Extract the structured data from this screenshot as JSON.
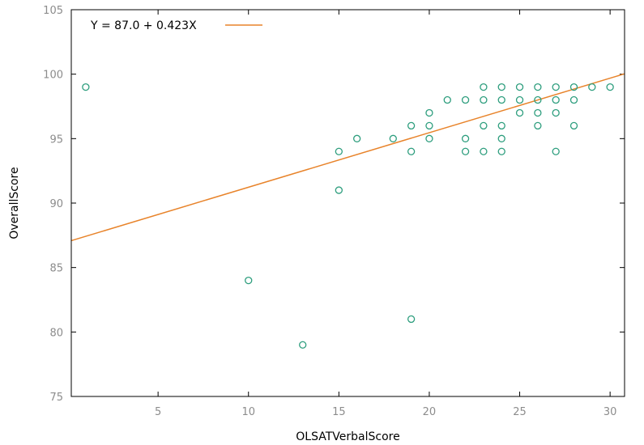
{
  "chart_data": {
    "type": "scatter",
    "xlabel": "OLSATVerbalScore",
    "ylabel": "OverallScore",
    "xlim": [
      0.2,
      30.8
    ],
    "ylim": [
      75,
      105
    ],
    "x_ticks": [
      5,
      10,
      15,
      20,
      25,
      30
    ],
    "y_ticks": [
      75,
      80,
      85,
      90,
      95,
      100,
      105
    ],
    "grid": false,
    "legend_position": "top-left",
    "points": [
      {
        "x": 1,
        "y": 99
      },
      {
        "x": 10,
        "y": 84
      },
      {
        "x": 13,
        "y": 79
      },
      {
        "x": 15,
        "y": 94
      },
      {
        "x": 15,
        "y": 91
      },
      {
        "x": 16,
        "y": 95
      },
      {
        "x": 18,
        "y": 95
      },
      {
        "x": 19,
        "y": 96
      },
      {
        "x": 19,
        "y": 94
      },
      {
        "x": 19,
        "y": 81
      },
      {
        "x": 20,
        "y": 97
      },
      {
        "x": 20,
        "y": 96
      },
      {
        "x": 20,
        "y": 95
      },
      {
        "x": 21,
        "y": 98
      },
      {
        "x": 22,
        "y": 98
      },
      {
        "x": 22,
        "y": 95
      },
      {
        "x": 22,
        "y": 94
      },
      {
        "x": 23,
        "y": 99
      },
      {
        "x": 23,
        "y": 98
      },
      {
        "x": 23,
        "y": 96
      },
      {
        "x": 23,
        "y": 94
      },
      {
        "x": 24,
        "y": 99
      },
      {
        "x": 24,
        "y": 98
      },
      {
        "x": 24,
        "y": 96
      },
      {
        "x": 24,
        "y": 95
      },
      {
        "x": 24,
        "y": 94
      },
      {
        "x": 25,
        "y": 99
      },
      {
        "x": 25,
        "y": 98
      },
      {
        "x": 25,
        "y": 97
      },
      {
        "x": 26,
        "y": 99
      },
      {
        "x": 26,
        "y": 98
      },
      {
        "x": 26,
        "y": 97
      },
      {
        "x": 26,
        "y": 96
      },
      {
        "x": 27,
        "y": 99
      },
      {
        "x": 27,
        "y": 98
      },
      {
        "x": 27,
        "y": 97
      },
      {
        "x": 27,
        "y": 94
      },
      {
        "x": 28,
        "y": 99
      },
      {
        "x": 28,
        "y": 98
      },
      {
        "x": 28,
        "y": 96
      },
      {
        "x": 29,
        "y": 99
      },
      {
        "x": 30,
        "y": 99
      }
    ],
    "fit_line": {
      "label": "Y = 87.0 + 0.423X",
      "intercept": 87.0,
      "slope": 0.423
    },
    "colors": {
      "points": "#2e9e7e",
      "fit_line": "#e8832a",
      "axis": "#000000",
      "tick_label": "#8c8c8c"
    }
  }
}
